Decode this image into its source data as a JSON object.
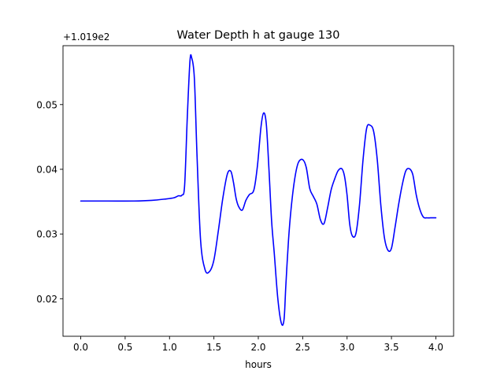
{
  "chart_data": {
    "type": "line",
    "title": "Water Depth h at gauge 130",
    "xlabel": "hours",
    "ylabel": "",
    "y_offset_label": "+1.019e2",
    "xlim": [
      -0.2,
      4.2
    ],
    "ylim": [
      0.0142,
      0.0591
    ],
    "x_ticks": [
      0.0,
      0.5,
      1.0,
      1.5,
      2.0,
      2.5,
      3.0,
      3.5,
      4.0
    ],
    "x_tick_labels": [
      "0.0",
      "0.5",
      "1.0",
      "1.5",
      "2.0",
      "2.5",
      "3.0",
      "3.5",
      "4.0"
    ],
    "y_ticks": [
      0.02,
      0.03,
      0.04,
      0.05
    ],
    "y_tick_labels": [
      "0.02",
      "0.03",
      "0.04",
      "0.05"
    ],
    "grid": false,
    "legend": "none",
    "series": [
      {
        "color": "#0000ff",
        "x": [
          0.0,
          0.3,
          0.6,
          0.8,
          0.95,
          1.05,
          1.1,
          1.14,
          1.17,
          1.2,
          1.23,
          1.25,
          1.28,
          1.31,
          1.35,
          1.4,
          1.45,
          1.5,
          1.55,
          1.6,
          1.65,
          1.69,
          1.72,
          1.75,
          1.78,
          1.82,
          1.86,
          1.9,
          1.95,
          1.99,
          2.03,
          2.06,
          2.09,
          2.12,
          2.15,
          2.18,
          2.22,
          2.26,
          2.29,
          2.31,
          2.34,
          2.37,
          2.41,
          2.45,
          2.5,
          2.54,
          2.58,
          2.62,
          2.66,
          2.7,
          2.74,
          2.78,
          2.82,
          2.86,
          2.9,
          2.94,
          2.97,
          3.0,
          3.03,
          3.06,
          3.1,
          3.14,
          3.18,
          3.22,
          3.26,
          3.3,
          3.34,
          3.38,
          3.42,
          3.46,
          3.5,
          3.54,
          3.58,
          3.62,
          3.66,
          3.7,
          3.74,
          3.78,
          3.82,
          3.86,
          3.9,
          3.94,
          3.98,
          4.0
        ],
        "y": [
          0.0351,
          0.0351,
          0.0351,
          0.0352,
          0.0354,
          0.0356,
          0.0359,
          0.036,
          0.0375,
          0.048,
          0.0567,
          0.0572,
          0.054,
          0.042,
          0.029,
          0.0245,
          0.0242,
          0.026,
          0.0305,
          0.0355,
          0.0392,
          0.0397,
          0.038,
          0.0355,
          0.0342,
          0.0337,
          0.0352,
          0.0361,
          0.0368,
          0.0405,
          0.0465,
          0.0487,
          0.047,
          0.04,
          0.032,
          0.027,
          0.02,
          0.0162,
          0.0168,
          0.022,
          0.029,
          0.034,
          0.0385,
          0.041,
          0.0415,
          0.0403,
          0.037,
          0.0358,
          0.0346,
          0.0322,
          0.0316,
          0.034,
          0.0368,
          0.0385,
          0.0398,
          0.0401,
          0.039,
          0.036,
          0.0315,
          0.0297,
          0.0301,
          0.0345,
          0.0415,
          0.0463,
          0.0468,
          0.0458,
          0.0415,
          0.0345,
          0.0295,
          0.0275,
          0.0278,
          0.031,
          0.0345,
          0.0375,
          0.0397,
          0.0401,
          0.0392,
          0.036,
          0.0338,
          0.0326,
          0.0325,
          0.0325,
          0.0325,
          0.0325
        ]
      }
    ]
  }
}
